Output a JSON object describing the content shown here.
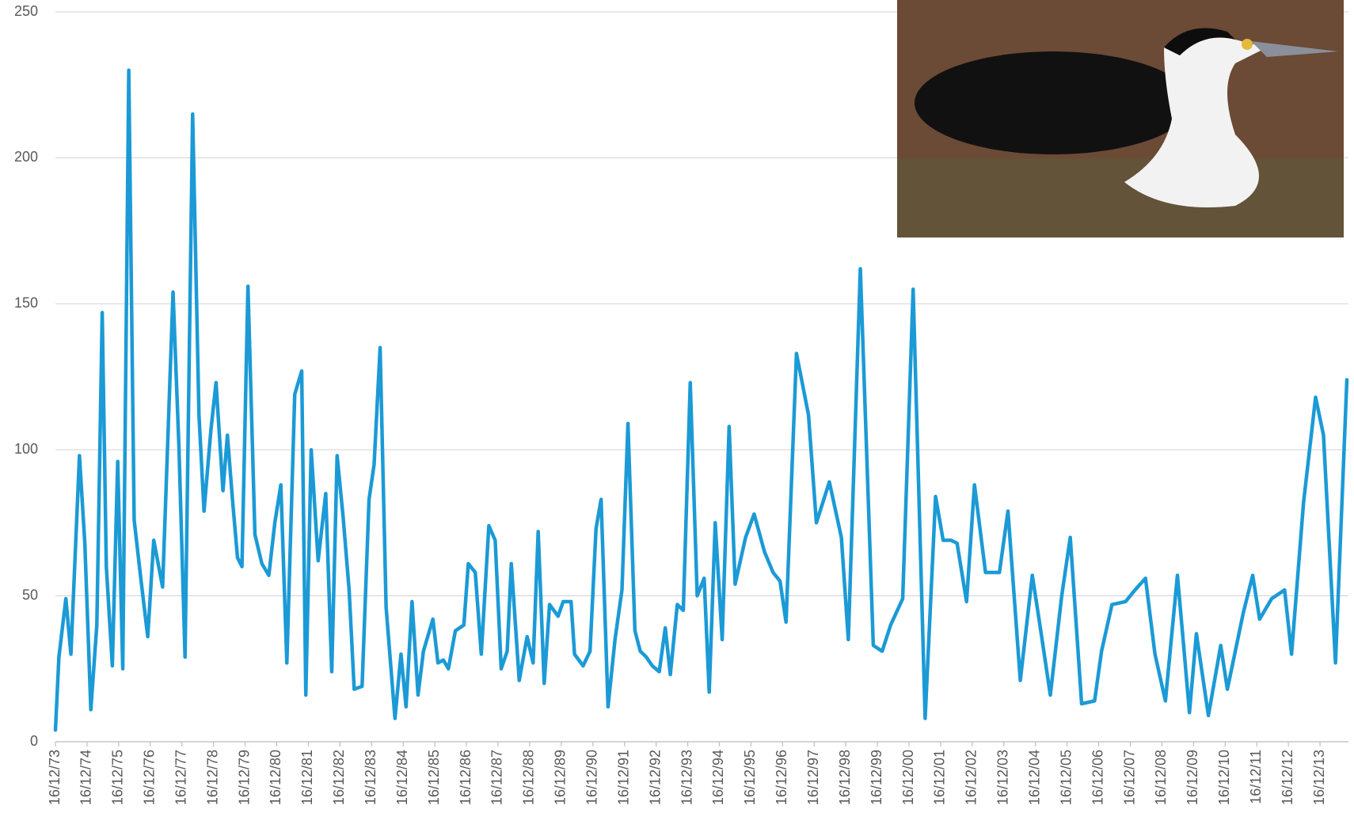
{
  "chart_data": {
    "type": "line",
    "color": "#1b9ad6",
    "grid": true,
    "ylim": [
      0,
      250
    ],
    "yticks": [
      0,
      50,
      100,
      150,
      200,
      250
    ],
    "xlim": [
      1973.96,
      2014.86
    ],
    "xticks": [
      {
        "value": 1973.96,
        "label": "16/12/73"
      },
      {
        "value": 1974.96,
        "label": "16/12/74"
      },
      {
        "value": 1975.96,
        "label": "16/12/75"
      },
      {
        "value": 1976.96,
        "label": "16/12/76"
      },
      {
        "value": 1977.96,
        "label": "16/12/77"
      },
      {
        "value": 1978.96,
        "label": "16/12/78"
      },
      {
        "value": 1979.96,
        "label": "16/12/79"
      },
      {
        "value": 1980.96,
        "label": "16/12/80"
      },
      {
        "value": 1981.96,
        "label": "16/12/81"
      },
      {
        "value": 1982.96,
        "label": "16/12/82"
      },
      {
        "value": 1983.96,
        "label": "16/12/83"
      },
      {
        "value": 1984.96,
        "label": "16/12/84"
      },
      {
        "value": 1985.96,
        "label": "16/12/85"
      },
      {
        "value": 1986.96,
        "label": "16/12/86"
      },
      {
        "value": 1987.96,
        "label": "16/12/87"
      },
      {
        "value": 1988.96,
        "label": "16/12/88"
      },
      {
        "value": 1989.96,
        "label": "16/12/89"
      },
      {
        "value": 1990.96,
        "label": "16/12/90"
      },
      {
        "value": 1991.96,
        "label": "16/12/91"
      },
      {
        "value": 1992.96,
        "label": "16/12/92"
      },
      {
        "value": 1993.96,
        "label": "16/12/93"
      },
      {
        "value": 1994.96,
        "label": "16/12/94"
      },
      {
        "value": 1995.96,
        "label": "16/12/95"
      },
      {
        "value": 1996.96,
        "label": "16/12/96"
      },
      {
        "value": 1997.96,
        "label": "16/12/97"
      },
      {
        "value": 1998.96,
        "label": "16/12/98"
      },
      {
        "value": 1999.96,
        "label": "16/12/99"
      },
      {
        "value": 2000.96,
        "label": "16/12/00"
      },
      {
        "value": 2001.96,
        "label": "16/12/01"
      },
      {
        "value": 2002.96,
        "label": "16/12/02"
      },
      {
        "value": 2003.96,
        "label": "16/12/03"
      },
      {
        "value": 2004.96,
        "label": "16/12/04"
      },
      {
        "value": 2005.96,
        "label": "16/12/05"
      },
      {
        "value": 2006.96,
        "label": "16/12/06"
      },
      {
        "value": 2007.96,
        "label": "16/12/07"
      },
      {
        "value": 2008.96,
        "label": "16/12/08"
      },
      {
        "value": 2009.96,
        "label": "16/12/09"
      },
      {
        "value": 2010.96,
        "label": "16/12/10"
      },
      {
        "value": 2011.96,
        "label": "16/12/11"
      },
      {
        "value": 2012.96,
        "label": "16/12/12"
      },
      {
        "value": 2013.96,
        "label": "16/12/13"
      }
    ],
    "x": [
      1973.96,
      1974.07,
      1974.29,
      1974.45,
      1974.72,
      1974.89,
      1975.08,
      1975.27,
      1975.44,
      1975.57,
      1975.76,
      1975.93,
      1976.09,
      1976.28,
      1976.45,
      1976.66,
      1976.88,
      1977.07,
      1977.35,
      1977.68,
      1977.87,
      1978.06,
      1978.3,
      1978.5,
      1978.66,
      1978.88,
      1979.04,
      1979.26,
      1979.4,
      1979.56,
      1979.72,
      1979.86,
      1980.05,
      1980.27,
      1980.49,
      1980.71,
      1980.9,
      1981.09,
      1981.28,
      1981.53,
      1981.75,
      1981.88,
      1982.05,
      1982.27,
      1982.51,
      1982.7,
      1982.87,
      1983.06,
      1983.25,
      1983.41,
      1983.66,
      1983.88,
      1984.04,
      1984.23,
      1984.42,
      1984.7,
      1984.89,
      1985.05,
      1985.24,
      1985.43,
      1985.6,
      1985.9,
      1986.06,
      1986.23,
      1986.39,
      1986.61,
      1986.88,
      1987.02,
      1987.24,
      1987.43,
      1987.67,
      1987.87,
      1988.06,
      1988.25,
      1988.38,
      1988.63,
      1988.88,
      1989.07,
      1989.23,
      1989.42,
      1989.59,
      1989.86,
      1990.02,
      1990.27,
      1990.38,
      1990.65,
      1990.87,
      1991.06,
      1991.22,
      1991.44,
      1991.66,
      1991.88,
      1992.07,
      1992.29,
      1992.46,
      1992.65,
      1992.84,
      1993.06,
      1993.25,
      1993.41,
      1993.63,
      1993.82,
      1994.04,
      1994.26,
      1994.48,
      1994.64,
      1994.83,
      1995.05,
      1995.27,
      1995.46,
      1995.79,
      1996.06,
      1996.39,
      1996.66,
      1996.88,
      1997.07,
      1997.4,
      1997.78,
      1998.03,
      1998.44,
      1998.82,
      1999.04,
      1999.42,
      1999.83,
      2000.11,
      2000.38,
      2000.76,
      2001.09,
      2001.47,
      2001.8,
      2002.04,
      2002.29,
      2002.48,
      2002.78,
      2003.03,
      2003.38,
      2003.6,
      2003.82,
      2004.09,
      2004.48,
      2004.86,
      2005.1,
      2005.43,
      2005.79,
      2006.06,
      2006.42,
      2006.83,
      2007.05,
      2007.38,
      2007.81,
      2008.11,
      2008.44,
      2008.74,
      2009.07,
      2009.45,
      2009.67,
      2009.83,
      2010.05,
      2010.43,
      2010.82,
      2011.03,
      2011.53,
      2011.83,
      2012.05,
      2012.43,
      2012.84,
      2013.06,
      2013.44,
      2013.82,
      2014.07,
      2014.45,
      2014.81
    ],
    "values": [
      4,
      29,
      49,
      30,
      98,
      68,
      11,
      40,
      147,
      60,
      26,
      96,
      25,
      230,
      76,
      56,
      36,
      69,
      53,
      154,
      100,
      29,
      215,
      112,
      79,
      107,
      123,
      86,
      105,
      83,
      63,
      60,
      156,
      71,
      61,
      57,
      75,
      88,
      27,
      119,
      127,
      16,
      100,
      62,
      85,
      24,
      98,
      77,
      52,
      18,
      19,
      83,
      95,
      135,
      46,
      8,
      30,
      12,
      48,
      16,
      31,
      42,
      27,
      28,
      25,
      38,
      40,
      61,
      58,
      30,
      74,
      69,
      25,
      31,
      61,
      21,
      36,
      27,
      72,
      20,
      47,
      43,
      48,
      48,
      30,
      26,
      31,
      73,
      83,
      12,
      35,
      52,
      109,
      38,
      31,
      29,
      26,
      24,
      39,
      23,
      47,
      45,
      123,
      50,
      56,
      17,
      75,
      35,
      108,
      54,
      70,
      78,
      65,
      58,
      55,
      41,
      133,
      112,
      75,
      89,
      70,
      35,
      162,
      33,
      31,
      40,
      49,
      155,
      8,
      84,
      69,
      69,
      68,
      48,
      88,
      58,
      58,
      58,
      79,
      21,
      57,
      40,
      16,
      50,
      70,
      13,
      14,
      31,
      47,
      48,
      52,
      56,
      30,
      14,
      57,
      30,
      10,
      37,
      9,
      33,
      18,
      44,
      57,
      42,
      49,
      52,
      30,
      82,
      118,
      105,
      27,
      124
    ]
  }
}
